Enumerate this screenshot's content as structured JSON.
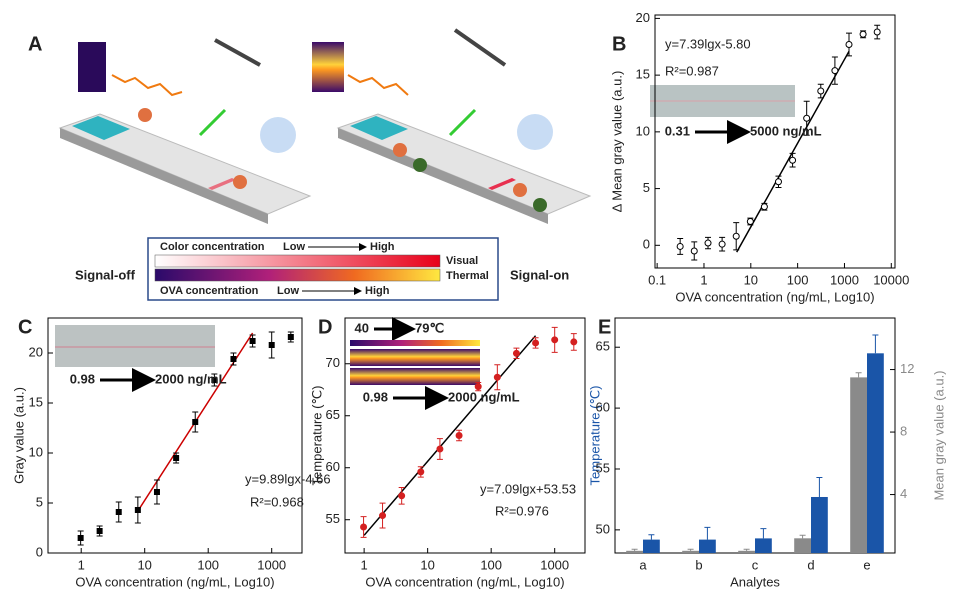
{
  "diagram": {
    "panel_label": "A",
    "left_label": "Signal-off",
    "right_label": "Signal-on",
    "legend": {
      "color_title": "Color concentration",
      "color_low": "Low",
      "color_high": "High",
      "visual": "Visual",
      "thermal": "Thermal",
      "ova_title": "OVA concentration",
      "ova_low": "Low",
      "ova_high": "High"
    }
  },
  "chart_data": [
    {
      "type": "scatter",
      "panel_label": "B",
      "x_label": "OVA concentration (ng/mL, Log10)",
      "y_label": "Δ Mean gray value (a.u.)",
      "xscale": "log",
      "xlim": [
        0.09,
        12000
      ],
      "xticks": [
        0.1,
        1,
        10,
        100,
        1000,
        10000
      ],
      "ylim": [
        -2,
        20.3
      ],
      "yticks": [
        0,
        5,
        10,
        15,
        20
      ],
      "series": [
        {
          "marker": "open-circle",
          "color": "#000000",
          "x": [
            0.31,
            0.62,
            1.22,
            2.44,
            4.88,
            9.77,
            19.5,
            39,
            78,
            156,
            312,
            625,
            1250,
            2500,
            5000
          ],
          "values": [
            -0.1,
            -0.5,
            0.2,
            0.1,
            0.8,
            2.1,
            3.4,
            5.6,
            7.5,
            11.2,
            13.6,
            15.4,
            17.7,
            18.6,
            18.8
          ],
          "errors": [
            0.7,
            0.8,
            0.5,
            0.6,
            1.2,
            0.3,
            0.3,
            0.5,
            0.6,
            1.5,
            0.6,
            1.2,
            1.0,
            0.3,
            0.6
          ]
        }
      ],
      "fit": {
        "color": "#000000",
        "x": [
          5,
          1250
        ],
        "values": [
          -0.6,
          17.1
        ]
      },
      "equation": "y=7.39lgx-5.80",
      "r2": "R²=0.987",
      "inset": {
        "from": "0.31",
        "to": "5000 ng/mL"
      }
    },
    {
      "type": "scatter",
      "panel_label": "C",
      "x_label": "OVA concentration (ng/mL, Log10)",
      "y_label": "Gray value (a.u.)",
      "xscale": "log",
      "xlim": [
        0.3,
        3000
      ],
      "xticks": [
        1,
        10,
        100,
        1000
      ],
      "ylim": [
        0,
        23.5
      ],
      "yticks": [
        0,
        5,
        10,
        15,
        20
      ],
      "series": [
        {
          "marker": "square",
          "color": "#000000",
          "x": [
            0.98,
            1.95,
            3.9,
            7.8,
            15.6,
            31.25,
            62.5,
            125,
            250,
            500,
            1000,
            2000
          ],
          "values": [
            1.5,
            2.2,
            4.1,
            4.3,
            6.1,
            9.5,
            13.1,
            17.3,
            19.4,
            21.2,
            20.8,
            21.6
          ],
          "errors": [
            0.7,
            0.5,
            1.0,
            1.3,
            1.2,
            0.5,
            1.0,
            0.6,
            0.6,
            0.6,
            1.3,
            0.5
          ]
        }
      ],
      "fit": {
        "color": "#cc0000",
        "x": [
          7.8,
          500
        ],
        "values": [
          4.2,
          22.0
        ]
      },
      "equation": "y=9.89lgx-4.66",
      "r2": "R²=0.968",
      "inset": {
        "from": "0.98",
        "to": "2000 ng/mL"
      }
    },
    {
      "type": "scatter",
      "panel_label": "D",
      "x_label": "OVA concentration (ng/mL, Log10)",
      "y_label": "Temperature (℃)",
      "xscale": "log",
      "xlim": [
        0.5,
        3000
      ],
      "xticks": [
        1,
        10,
        100,
        1000
      ],
      "ylim": [
        51.8,
        74.4
      ],
      "yticks": [
        55,
        60,
        65,
        70
      ],
      "series": [
        {
          "marker": "circle",
          "color": "#d42020",
          "x": [
            0.98,
            1.95,
            3.9,
            7.8,
            15.6,
            31.25,
            62.5,
            125,
            250,
            500,
            1000,
            2000
          ],
          "values": [
            54.3,
            55.4,
            57.3,
            59.6,
            61.8,
            63.1,
            67.8,
            68.7,
            71.0,
            72.0,
            72.3,
            72.1
          ],
          "errors": [
            1.0,
            1.2,
            0.8,
            0.5,
            1.0,
            0.5,
            0.4,
            1.2,
            0.5,
            0.5,
            1.2,
            0.8
          ]
        }
      ],
      "fit": {
        "color": "#000000",
        "x": [
          1,
          500
        ],
        "values": [
          53.5,
          72.7
        ]
      },
      "equation": "y=7.09lgx+53.53",
      "r2": "R²=0.976",
      "inset": {
        "from": "0.98",
        "to": "2000 ng/mL",
        "temp_from": "40",
        "temp_to": "79℃"
      }
    },
    {
      "type": "bar",
      "panel_label": "E",
      "x_label": "Analytes",
      "y_label": "Temperature (℃)",
      "y2_label": "Mean gray value (a.u.)",
      "categories": [
        "a",
        "b",
        "c",
        "d",
        "e"
      ],
      "ylim": [
        48.1,
        67.4
      ],
      "yticks": [
        50,
        55,
        60,
        65
      ],
      "y2lim": [
        0.26,
        15.3
      ],
      "y2ticks": [
        4,
        8,
        12
      ],
      "series": [
        {
          "color": "#8a8a8a",
          "axis": "y2",
          "values": [
            0.4,
            0.4,
            0.4,
            1.2,
            11.5
          ],
          "errors": [
            0.1,
            0.1,
            0.1,
            0.2,
            0.3
          ]
        },
        {
          "color": "#1a55a8",
          "axis": "y",
          "values": [
            49.2,
            49.2,
            49.3,
            52.7,
            64.5
          ],
          "errors": [
            0.4,
            1.0,
            0.8,
            1.6,
            1.5
          ]
        }
      ]
    }
  ]
}
